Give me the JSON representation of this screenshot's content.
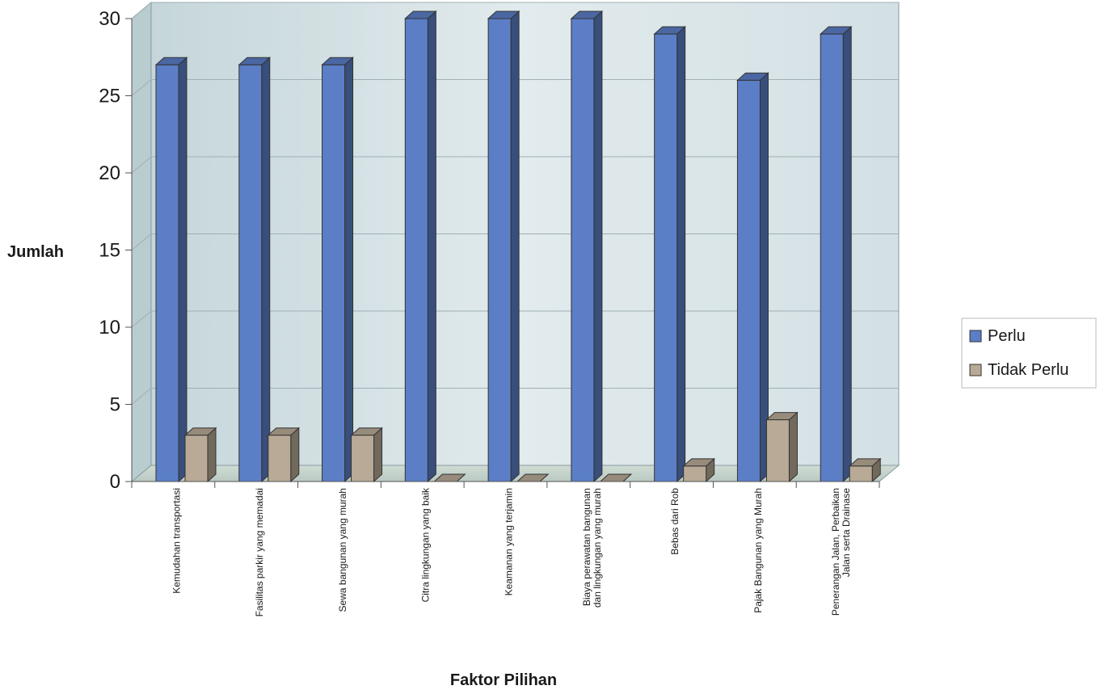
{
  "chart_data": {
    "type": "bar",
    "title": "",
    "xlabel": "Faktor Pilihan",
    "ylabel": "Jumlah",
    "ylim": [
      0,
      30
    ],
    "yticks": [
      0,
      5,
      10,
      15,
      20,
      25,
      30
    ],
    "categories": [
      [
        "Kemudahan transportasi"
      ],
      [
        "Fasilitas parkir yang memadai"
      ],
      [
        "Sewa bangunan yang murah"
      ],
      [
        "Citra lingkungan yang baik"
      ],
      [
        "Keamanan yang terjamin"
      ],
      [
        "Biaya perawatan bangunan",
        "dan lingkungan yang murah"
      ],
      [
        "Bebas dari Rob"
      ],
      [
        "Pajak Bangunan yang Murah"
      ],
      [
        "Penerangan Jalan, Perbaikan",
        "Jalan serta Drainase"
      ]
    ],
    "series": [
      {
        "name": "Perlu",
        "color": "#5b7ec7",
        "values": [
          27,
          27,
          27,
          30,
          30,
          30,
          29,
          26,
          29
        ]
      },
      {
        "name": "Tidak Perlu",
        "color": "#b8aa96",
        "values": [
          3,
          3,
          3,
          0,
          0,
          0,
          1,
          4,
          1
        ]
      }
    ],
    "grid": true,
    "legend_position": "right",
    "style": "3d-column"
  }
}
